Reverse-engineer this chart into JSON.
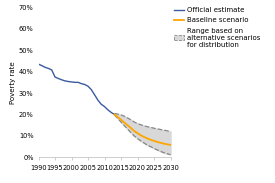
{
  "title": "",
  "ylabel": "Poverty rate",
  "xlim": [
    1990,
    2030
  ],
  "ylim": [
    0,
    0.7
  ],
  "yticks": [
    0.0,
    0.1,
    0.2,
    0.3,
    0.4,
    0.5,
    0.6,
    0.7
  ],
  "ytick_labels": [
    "0%",
    "10%",
    "20%",
    "30%",
    "40%",
    "50%",
    "60%",
    "70%"
  ],
  "xticks": [
    1990,
    1995,
    2000,
    2005,
    2010,
    2015,
    2020,
    2025,
    2030
  ],
  "official_x": [
    1990,
    1991,
    1992,
    1993,
    1994,
    1995,
    1996,
    1997,
    1998,
    1999,
    2000,
    2001,
    2002,
    2003,
    2004,
    2005,
    2006,
    2007,
    2008,
    2009,
    2010,
    2011,
    2012,
    2013
  ],
  "official_y": [
    0.435,
    0.428,
    0.42,
    0.415,
    0.408,
    0.375,
    0.368,
    0.362,
    0.357,
    0.354,
    0.352,
    0.35,
    0.35,
    0.344,
    0.34,
    0.332,
    0.316,
    0.292,
    0.267,
    0.248,
    0.237,
    0.222,
    0.21,
    0.2
  ],
  "baseline_x": [
    2013,
    2014,
    2015,
    2016,
    2017,
    2018,
    2019,
    2020,
    2021,
    2022,
    2023,
    2024,
    2025,
    2026,
    2027,
    2028,
    2029,
    2030
  ],
  "baseline_y": [
    0.2,
    0.188,
    0.176,
    0.162,
    0.15,
    0.137,
    0.123,
    0.113,
    0.103,
    0.095,
    0.088,
    0.082,
    0.077,
    0.072,
    0.068,
    0.064,
    0.061,
    0.058
  ],
  "range_x": [
    2013,
    2014,
    2015,
    2016,
    2017,
    2018,
    2019,
    2020,
    2021,
    2022,
    2023,
    2024,
    2025,
    2026,
    2027,
    2028,
    2029,
    2030
  ],
  "range_upper": [
    0.205,
    0.202,
    0.198,
    0.192,
    0.184,
    0.175,
    0.165,
    0.158,
    0.152,
    0.147,
    0.143,
    0.14,
    0.136,
    0.133,
    0.13,
    0.127,
    0.124,
    0.121
  ],
  "range_lower": [
    0.198,
    0.182,
    0.165,
    0.148,
    0.132,
    0.116,
    0.1,
    0.088,
    0.077,
    0.067,
    0.057,
    0.05,
    0.042,
    0.035,
    0.028,
    0.022,
    0.017,
    0.013
  ],
  "official_color": "#3A5BA0",
  "baseline_color": "#FFA500",
  "range_fill_color": "#D8D8D8",
  "range_edge_color": "#888888",
  "bg_color": "#FFFFFF",
  "legend_fontsize": 5.0,
  "axis_fontsize": 5.0,
  "tick_fontsize": 4.8
}
